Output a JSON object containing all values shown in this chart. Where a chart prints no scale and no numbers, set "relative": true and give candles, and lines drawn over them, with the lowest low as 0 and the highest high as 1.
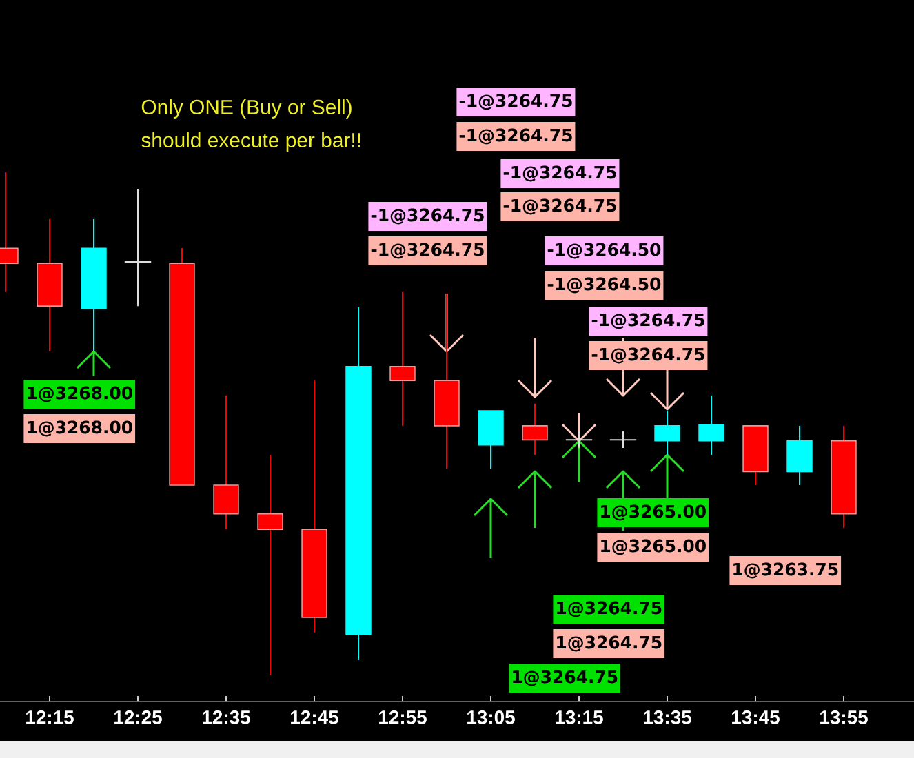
{
  "chart_data": {
    "type": "candlestick",
    "relative": true,
    "categories": [
      null,
      "12:15",
      null,
      "12:25",
      null,
      "12:35",
      null,
      "12:45",
      null,
      "12:55",
      null,
      "13:05",
      null,
      "13:15",
      null,
      "13:35",
      null,
      "13:45",
      null,
      "13:55"
    ],
    "ohlc": [
      [
        0.849,
        1,
        0.762,
        0.819
      ],
      [
        0.819,
        0.907,
        0.644,
        0.734
      ],
      [
        0.729,
        0.907,
        0.644,
        0.849
      ],
      [
        0.822,
        0.967,
        0.734,
        0.822
      ],
      [
        0.819,
        0.849,
        0.378,
        0.378
      ],
      [
        0.378,
        0.556,
        0.29,
        0.321
      ],
      [
        0.321,
        0.438,
        0,
        0.29
      ],
      [
        0.29,
        0.586,
        0.085,
        0.115
      ],
      [
        0.082,
        0.732,
        0.03,
        0.614
      ],
      [
        0.614,
        0.762,
        0.496,
        0.586
      ],
      [
        0.586,
        0.759,
        0.411,
        0.496
      ],
      [
        0.458,
        0.526,
        0.411,
        0.526
      ],
      [
        0.496,
        0.54,
        0.438,
        0.468
      ],
      [
        0.468,
        0.485,
        0.452,
        0.468
      ],
      [
        0.468,
        0.485,
        0.452,
        0.468
      ],
      [
        0.466,
        0.526,
        0.438,
        0.496
      ],
      [
        0.466,
        0.556,
        0.438,
        0.499
      ],
      [
        0.496,
        0.496,
        0.378,
        0.405
      ],
      [
        0.405,
        0.496,
        0.378,
        0.466
      ],
      [
        0.466,
        0.496,
        0.293,
        0.321
      ]
    ],
    "colors": [
      "#ff0000",
      "#ff0000",
      "#00ffff",
      "#dddddd",
      "#ff0000",
      "#ff0000",
      "#ff0000",
      "#ff0000",
      "#00ffff",
      "#ff0000",
      "#ff0000",
      "#00ffff",
      "#ff0000",
      "#dddddd",
      "#dddddd",
      "#00ffff",
      "#00ffff",
      "#ff0000",
      "#00ffff",
      "#ff0000"
    ],
    "annotations": [
      "Only ONE (Buy or Sell)",
      "should execute per bar!!",
      "-1@3264.75",
      "-1@3264.75",
      "-1@3264.75",
      "-1@3264.75",
      "-1@3264.75",
      "-1@3264.75",
      "-1@3264.50",
      "-1@3264.50",
      "-1@3264.75",
      "-1@3264.75",
      "1@3268.00",
      "1@3268.00",
      "1@3265.00",
      "1@3265.00",
      "1@3263.75",
      "1@3264.75",
      "1@3264.75",
      "1@3264.75"
    ]
  }
}
